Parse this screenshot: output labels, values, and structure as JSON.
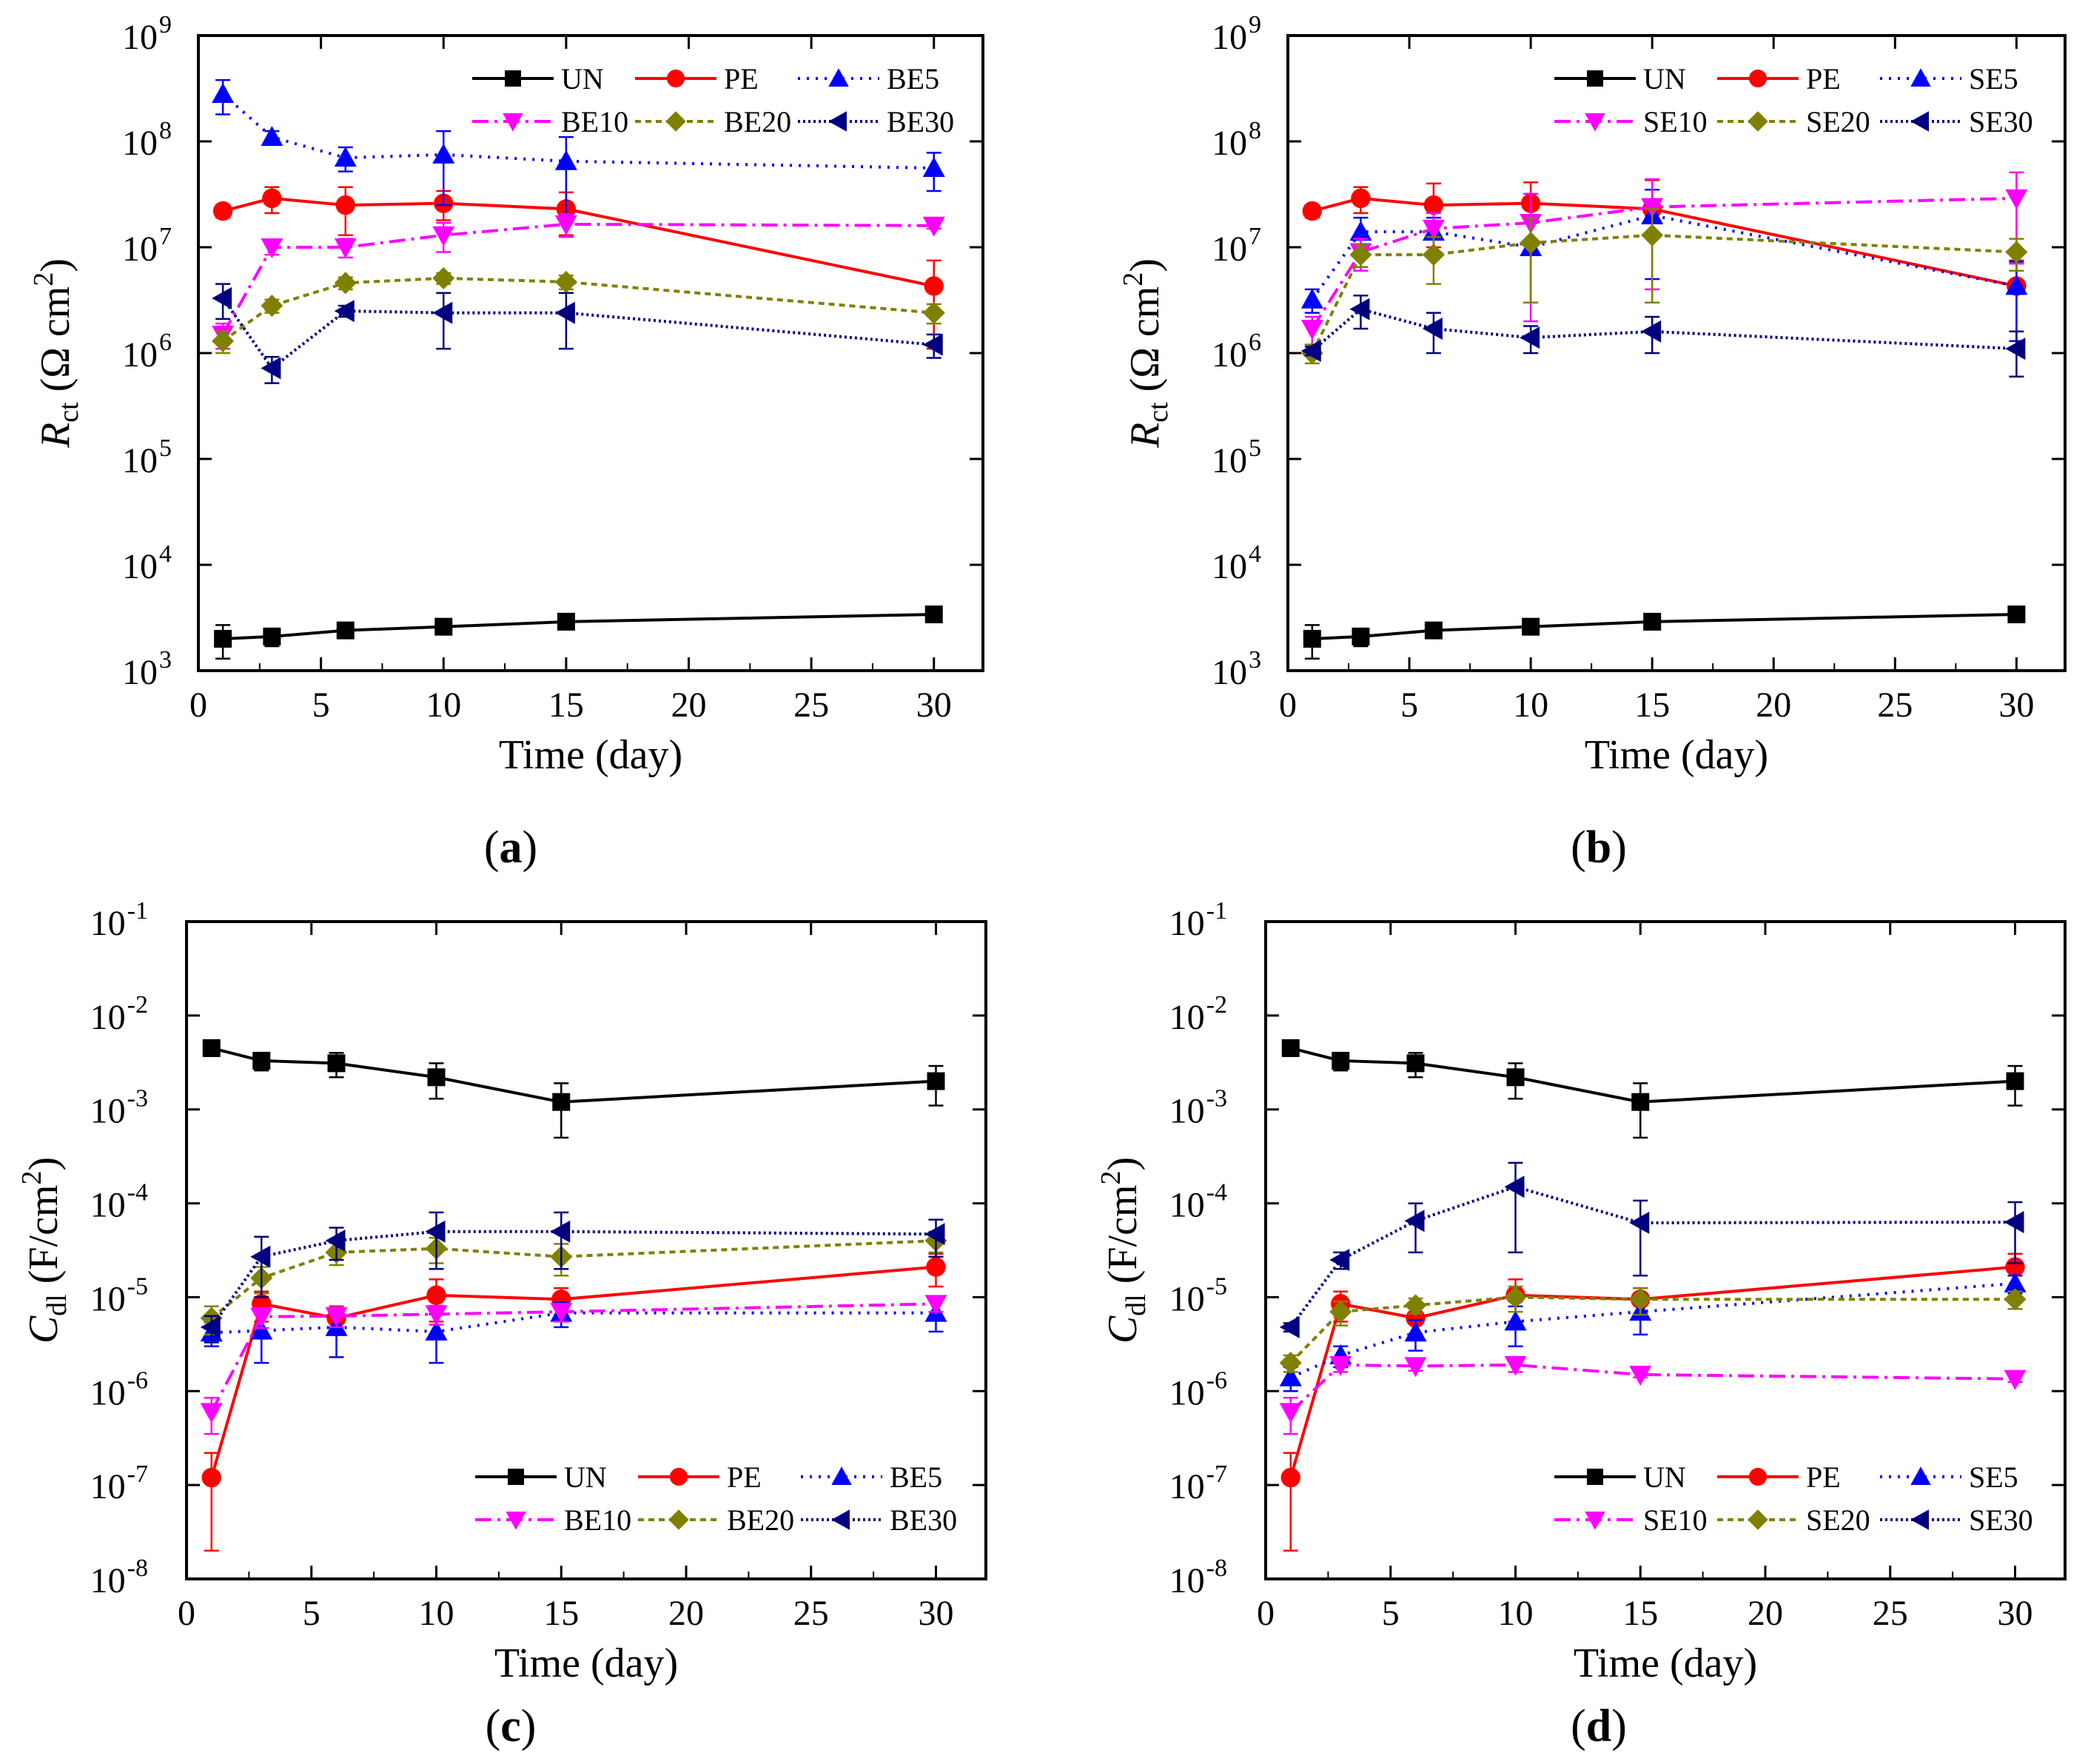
{
  "series_styles": {
    "UN": {
      "color": "#000000",
      "marker": "square",
      "dash": ""
    },
    "PE": {
      "color": "#ff0000",
      "marker": "circle",
      "dash": ""
    },
    "BE5": {
      "color": "#0000ff",
      "marker": "triangle-up",
      "dash": "3,9"
    },
    "BE10": {
      "color": "#ff00ff",
      "marker": "triangle-down",
      "dash": "22,8,4,8"
    },
    "BE20": {
      "color": "#808000",
      "marker": "diamond",
      "dash": "8,6"
    },
    "BE30": {
      "color": "#000080",
      "marker": "triangle-left",
      "dash": "3,4"
    },
    "SE5": {
      "color": "#0000ff",
      "marker": "triangle-up",
      "dash": "3,9"
    },
    "SE10": {
      "color": "#ff00ff",
      "marker": "triangle-down",
      "dash": "22,8,4,8"
    },
    "SE20": {
      "color": "#808000",
      "marker": "diamond",
      "dash": "8,6"
    },
    "SE30": {
      "color": "#000080",
      "marker": "triangle-left",
      "dash": "3,4"
    }
  },
  "chart_data": [
    {
      "panel": "(a)",
      "type": "line",
      "xlabel": "Time (day)",
      "ylabel_symbol": "R",
      "ylabel_sub": "ct",
      "ylabel_unit_pre": " (Ω cm",
      "ylabel_unit_sup": "2",
      "ylabel_unit_post": ")",
      "yscale": "log",
      "xlim": [
        0,
        32
      ],
      "ylim_exp": [
        3,
        9
      ],
      "xticks": [
        0,
        5,
        10,
        15,
        20,
        25,
        30
      ],
      "ytick_exponents": [
        3,
        4,
        5,
        6,
        7,
        8,
        9
      ],
      "legend_position": "top-right",
      "x": [
        1,
        3,
        6,
        10,
        15,
        30
      ],
      "series": [
        {
          "name": "UN",
          "values": [
            2000,
            2100,
            2400,
            2600,
            2900,
            3400
          ],
          "err": [
            700,
            400,
            200,
            200,
            200,
            300
          ]
        },
        {
          "name": "PE",
          "values": [
            22000000,
            29000000,
            25000000,
            26000000,
            23000000,
            4300000
          ],
          "err": [
            3000000,
            8000000,
            12000000,
            8000000,
            10000000,
            3200000
          ]
        },
        {
          "name": "BE5",
          "values": [
            280000000,
            110000000,
            70000000,
            75000000,
            65000000,
            56000000
          ],
          "err": [
            100000000,
            15000000,
            18000000,
            50000000,
            45000000,
            22000000
          ]
        },
        {
          "name": "BE10",
          "values": [
            1500000,
            10000000,
            10000000,
            13000000,
            16500000,
            16000000
          ],
          "err": [
            400000,
            1500000,
            2000000,
            4000000,
            4000000,
            1000000
          ]
        },
        {
          "name": "BE20",
          "values": [
            1300000,
            2800000,
            4600000,
            5100000,
            4700000,
            2400000
          ],
          "err": [
            300000,
            400000,
            600000,
            600000,
            700000,
            500000
          ]
        },
        {
          "name": "BE30",
          "values": [
            3300000,
            720000,
            2500000,
            2400000,
            2400000,
            1200000
          ],
          "err": [
            1200000,
            200000,
            300000,
            1300000,
            1300000,
            300000
          ]
        }
      ]
    },
    {
      "panel": "(b)",
      "type": "line",
      "xlabel": "Time (day)",
      "ylabel_symbol": "R",
      "ylabel_sub": "ct",
      "ylabel_unit_pre": " (Ω cm",
      "ylabel_unit_sup": "2",
      "ylabel_unit_post": ")",
      "yscale": "log",
      "xlim": [
        0,
        32
      ],
      "ylim_exp": [
        3,
        9
      ],
      "xticks": [
        0,
        5,
        10,
        15,
        20,
        25,
        30
      ],
      "ytick_exponents": [
        3,
        4,
        5,
        6,
        7,
        8,
        9
      ],
      "legend_position": "top-right",
      "x": [
        1,
        3,
        6,
        10,
        15,
        30
      ],
      "series": [
        {
          "name": "UN",
          "values": [
            2000,
            2100,
            2400,
            2600,
            2900,
            3400
          ],
          "err": [
            700,
            400,
            200,
            200,
            200,
            300
          ]
        },
        {
          "name": "PE",
          "values": [
            22000000,
            29000000,
            25000000,
            26000000,
            23000000,
            4300000
          ],
          "err": [
            3000000,
            8000000,
            15000000,
            15000000,
            20000000,
            3200000
          ]
        },
        {
          "name": "SE5",
          "values": [
            3200000,
            14000000,
            14000000,
            10000000,
            20000000,
            4300000
          ],
          "err": [
            800000,
            5000000,
            5000000,
            7000000,
            15000000,
            3000000
          ]
        },
        {
          "name": "SE10",
          "values": [
            1700000,
            9000000,
            15000000,
            17000000,
            24000000,
            29000000
          ],
          "err": [
            500000,
            3000000,
            6000000,
            15000000,
            20000000,
            22000000
          ]
        },
        {
          "name": "SE20",
          "values": [
            1000000,
            8500000,
            8500000,
            11000000,
            13000000,
            9000000
          ],
          "err": [
            200000,
            2000000,
            4000000,
            8000000,
            10000000,
            3000000
          ]
        },
        {
          "name": "SE30",
          "values": [
            1050000,
            2600000,
            1700000,
            1400000,
            1600000,
            1100000
          ],
          "err": [
            100000,
            900000,
            700000,
            400000,
            600000,
            500000
          ]
        }
      ]
    },
    {
      "panel": "(c)",
      "type": "line",
      "xlabel": "Time (day)",
      "ylabel_symbol": "C",
      "ylabel_sub": "dl",
      "ylabel_unit_pre": " (F/cm",
      "ylabel_unit_sup": "2",
      "ylabel_unit_post": ")",
      "yscale": "log",
      "xlim": [
        0,
        32
      ],
      "ylim_exp": [
        -8,
        -1
      ],
      "xticks": [
        0,
        5,
        10,
        15,
        20,
        25,
        30
      ],
      "ytick_exponents": [
        -8,
        -7,
        -6,
        -5,
        -4,
        -3,
        -2,
        -1
      ],
      "legend_position": "bottom-right",
      "x": [
        1,
        3,
        6,
        10,
        15,
        30
      ],
      "series": [
        {
          "name": "UN",
          "values": [
            0.0045,
            0.0033,
            0.0031,
            0.0022,
            0.0012,
            0.002
          ],
          "err": [
            0.0008,
            0.0007,
            0.0009,
            0.0009,
            0.0007,
            0.0009
          ]
        },
        {
          "name": "PE",
          "values": [
            1.2e-07,
            8.5e-06,
            6e-06,
            1.05e-05,
            9.5e-06,
            2.1e-05
          ],
          "err": [
            1e-07,
            3e-06,
            2e-06,
            5e-06,
            3e-06,
            8e-06
          ]
        },
        {
          "name": "BE5",
          "values": [
            4.2e-06,
            4.4e-06,
            4.8e-06,
            4.3e-06,
            6.8e-06,
            6.8e-06
          ],
          "err": [
            1.2e-06,
            2.4e-06,
            2.5e-06,
            2.3e-06,
            2e-06,
            2.5e-06
          ]
        },
        {
          "name": "BE10",
          "values": [
            6e-07,
            6.2e-06,
            6.3e-06,
            6.6e-06,
            7e-06,
            8.5e-06
          ],
          "err": [
            2.5e-07,
            1.5e-06,
            1.5e-06,
            1.5e-06,
            1.5e-06,
            1.5e-06
          ]
        },
        {
          "name": "BE20",
          "values": [
            6e-06,
            1.6e-05,
            3e-05,
            3.3e-05,
            2.7e-05,
            4e-05
          ],
          "err": [
            2e-06,
            5e-06,
            8e-06,
            1e-05,
            1e-05,
            1e-05
          ]
        },
        {
          "name": "BE30",
          "values": [
            4.8e-06,
            2.7e-05,
            4e-05,
            5e-05,
            5e-05,
            4.7e-05
          ],
          "err": [
            1.5e-06,
            1.7e-05,
            1.5e-05,
            3e-05,
            3e-05,
            2e-05
          ]
        }
      ]
    },
    {
      "panel": "(d)",
      "type": "line",
      "xlabel": "Time (day)",
      "ylabel_symbol": "C",
      "ylabel_sub": "dl",
      "ylabel_unit_pre": " (F/cm",
      "ylabel_unit_sup": "2",
      "ylabel_unit_post": ")",
      "yscale": "log",
      "xlim": [
        0,
        32
      ],
      "ylim_exp": [
        -8,
        -1
      ],
      "xticks": [
        0,
        5,
        10,
        15,
        20,
        25,
        30
      ],
      "ytick_exponents": [
        -8,
        -7,
        -6,
        -5,
        -4,
        -3,
        -2,
        -1
      ],
      "legend_position": "bottom-right",
      "x": [
        1,
        3,
        6,
        10,
        15,
        30
      ],
      "series": [
        {
          "name": "UN",
          "values": [
            0.0045,
            0.0033,
            0.0031,
            0.0022,
            0.0012,
            0.002
          ],
          "err": [
            0.0008,
            0.0007,
            0.0009,
            0.0009,
            0.0007,
            0.0009
          ]
        },
        {
          "name": "PE",
          "values": [
            1.2e-07,
            8.5e-06,
            6e-06,
            1.05e-05,
            9.5e-06,
            2.1e-05
          ],
          "err": [
            1e-07,
            3e-06,
            2e-06,
            5e-06,
            3e-06,
            8e-06
          ]
        },
        {
          "name": "SE5",
          "values": [
            1.4e-06,
            2.4e-06,
            4.2e-06,
            5.5e-06,
            7e-06,
            1.4e-05
          ],
          "err": [
            4e-07,
            6e-07,
            1.5e-06,
            2.5e-06,
            3e-06,
            3e-06
          ]
        },
        {
          "name": "SE10",
          "values": [
            6e-07,
            1.9e-06,
            1.85e-06,
            1.9e-06,
            1.5e-06,
            1.35e-06
          ],
          "err": [
            2.5e-07,
            3e-07,
            2e-07,
            3e-07,
            1e-07,
            1e-07
          ]
        },
        {
          "name": "SE20",
          "values": [
            2e-06,
            7e-06,
            8.2e-06,
            1e-05,
            9.5e-06,
            9.5e-06
          ],
          "err": [
            4e-07,
            2e-06,
            1.5e-06,
            3e-06,
            3e-06,
            2e-06
          ]
        },
        {
          "name": "SE30",
          "values": [
            4.8e-06,
            2.5e-05,
            6.5e-05,
            0.00015,
            6.2e-05,
            6.3e-05
          ],
          "err": [
            5e-07,
            5e-06,
            3.5e-05,
            0.00012,
            4.5e-05,
            4e-05
          ]
        }
      ]
    }
  ]
}
